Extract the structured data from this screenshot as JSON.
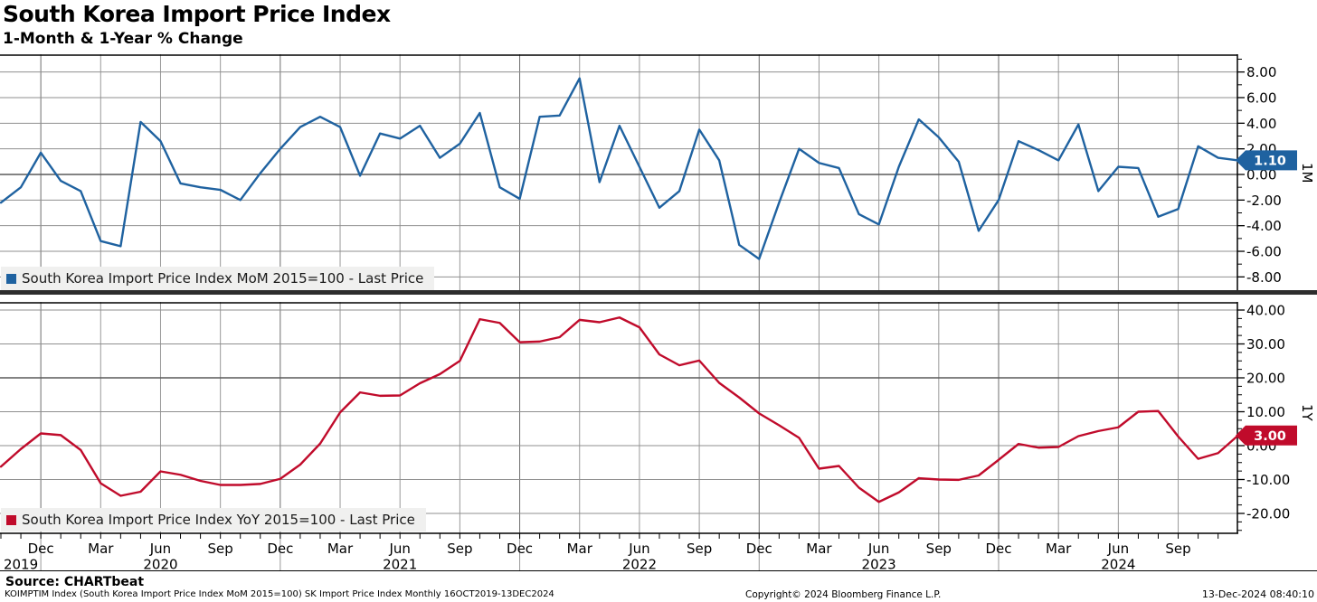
{
  "header": {
    "title": "South Korea Import Price Index",
    "subtitle": "1-Month & 1-Year % Change"
  },
  "xaxis": {
    "months": [
      "Oct 2019",
      "Nov 2019",
      "Dec 2019",
      "Jan 2020",
      "Feb 2020",
      "Mar 2020",
      "Apr 2020",
      "May 2020",
      "Jun 2020",
      "Jul 2020",
      "Aug 2020",
      "Sep 2020",
      "Oct 2020",
      "Nov 2020",
      "Dec 2020",
      "Jan 2021",
      "Feb 2021",
      "Mar 2021",
      "Apr 2021",
      "May 2021",
      "Jun 2021",
      "Jul 2021",
      "Aug 2021",
      "Sep 2021",
      "Oct 2021",
      "Nov 2021",
      "Dec 2021",
      "Jan 2022",
      "Feb 2022",
      "Mar 2022",
      "Apr 2022",
      "May 2022",
      "Jun 2022",
      "Jul 2022",
      "Aug 2022",
      "Sep 2022",
      "Oct 2022",
      "Nov 2022",
      "Dec 2022",
      "Jan 2023",
      "Feb 2023",
      "Mar 2023",
      "Apr 2023",
      "May 2023",
      "Jun 2023",
      "Jul 2023",
      "Aug 2023",
      "Sep 2023",
      "Oct 2023",
      "Nov 2023",
      "Dec 2023",
      "Jan 2024",
      "Feb 2024",
      "Mar 2024",
      "Apr 2024",
      "May 2024",
      "Jun 2024",
      "Jul 2024",
      "Aug 2024",
      "Sep 2024",
      "Oct 2024",
      "Nov 2024",
      "Dec 2024"
    ],
    "quarter_label_names": [
      "Dec",
      "Mar",
      "Jun",
      "Sep"
    ],
    "year_ticks": [
      {
        "index": 1,
        "label": "2019"
      },
      {
        "index": 8,
        "label": "2020"
      },
      {
        "index": 20,
        "label": "2021"
      },
      {
        "index": 32,
        "label": "2022"
      },
      {
        "index": 44,
        "label": "2023"
      },
      {
        "index": 56,
        "label": "2024"
      }
    ],
    "year_separator_indices": [
      2,
      14,
      26,
      38,
      50
    ]
  },
  "chart_data": [
    {
      "type": "line",
      "panel": "top",
      "legend": "South Korea Import Price Index MoM 2015=100 - Last Price",
      "axis_label": "1M",
      "last_price_label": "1.10",
      "last_price": 1.1,
      "line_color": "#1F62A0",
      "badge_color": "#1F62A0",
      "ylim": [
        -9.1,
        9.4
      ],
      "yticks": [
        -8,
        -6,
        -4,
        -2,
        0,
        2,
        4,
        6,
        8
      ],
      "ytick_labels": [
        "-8.00",
        "-6.00",
        "-4.00",
        "-2.00",
        "0.00",
        "2.00",
        "4.00",
        "6.00",
        "8.00"
      ],
      "emphasis_tick": 0,
      "minor_step": 1,
      "minor_range": [
        -9,
        9
      ],
      "values": [
        -2.2,
        -1.0,
        1.7,
        -0.5,
        -1.3,
        -5.2,
        -5.6,
        4.1,
        2.6,
        -0.7,
        -1.0,
        -1.2,
        -2.0,
        0.1,
        2.0,
        3.7,
        4.5,
        3.7,
        -0.1,
        3.2,
        2.8,
        3.8,
        1.3,
        2.4,
        4.8,
        -1.0,
        -1.9,
        4.5,
        4.6,
        7.5,
        -0.6,
        3.8,
        0.6,
        -2.6,
        -1.3,
        3.5,
        1.1,
        -5.5,
        -6.6,
        -2.2,
        2.0,
        0.9,
        0.5,
        -3.1,
        -3.9,
        0.6,
        4.3,
        2.9,
        1.0,
        -4.4,
        -2.0,
        2.6,
        1.9,
        1.1,
        3.9,
        -1.3,
        0.6,
        0.5,
        -3.3,
        -2.7,
        2.2,
        1.3,
        1.1
      ]
    },
    {
      "type": "line",
      "panel": "bottom",
      "legend": "South Korea Import Price Index YoY 2015=100 - Last Price",
      "axis_label": "1Y",
      "last_price_label": "3.00",
      "last_price": 3.0,
      "line_color": "#C00B2B",
      "badge_color": "#C00B2B",
      "ylim": [
        -25.9,
        43.5
      ],
      "yticks": [
        -20,
        -10,
        0,
        10,
        20,
        30,
        40
      ],
      "ytick_labels": [
        "-20.00",
        "-10.00",
        "0.00",
        "10.00",
        "20.00",
        "30.00",
        "40.00"
      ],
      "emphasis_tick": 20,
      "minor_step": 2.5,
      "minor_range": [
        -25,
        42.5
      ],
      "values": [
        -6.2,
        -1.0,
        3.6,
        3.1,
        -1.3,
        -11.1,
        -14.8,
        -13.6,
        -7.6,
        -8.6,
        -10.4,
        -11.6,
        -11.6,
        -11.3,
        -9.8,
        -5.6,
        0.6,
        9.8,
        15.7,
        14.7,
        14.8,
        18.4,
        21.1,
        25.0,
        37.3,
        36.2,
        30.5,
        30.7,
        32.0,
        37.1,
        36.4,
        37.8,
        34.9,
        26.9,
        23.7,
        25.1,
        18.5,
        14.2,
        9.5,
        6.0,
        2.3,
        -6.8,
        -6.0,
        -12.4,
        -16.6,
        -13.8,
        -9.6,
        -10.0,
        -10.1,
        -8.8,
        -4.2,
        0.5,
        -0.6,
        -0.4,
        2.8,
        4.3,
        5.4,
        10.0,
        10.2,
        2.7,
        -3.9,
        -2.2,
        3.0
      ]
    }
  ],
  "footer": {
    "source": "Source: CHARTbeat",
    "description": "KOIMPTIM Index (South Korea Import Price Index MoM 2015=100) SK Import Price Index  Monthly 16OCT2019-13DEC2024",
    "copyright": "Copyright© 2024 Bloomberg Finance L.P.",
    "timestamp": "13-Dec-2024 08:40:10"
  }
}
